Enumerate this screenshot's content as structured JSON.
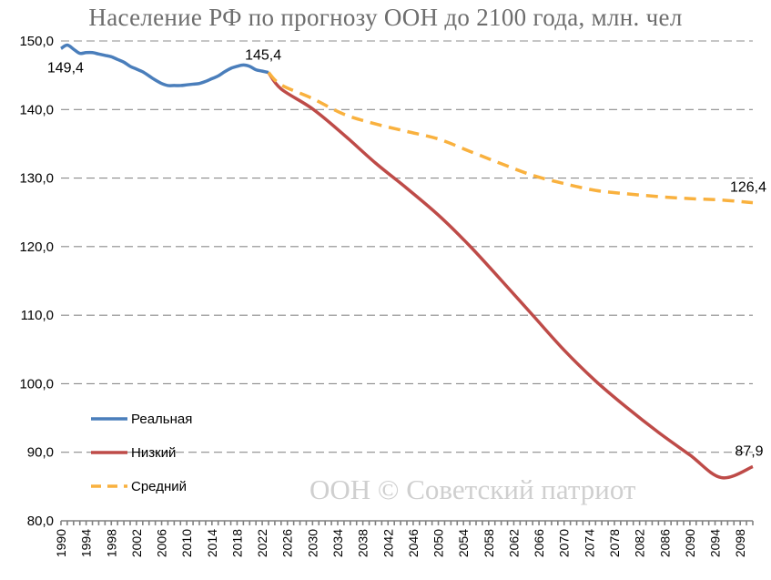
{
  "chart_data": {
    "type": "line",
    "title": "Население РФ по прогнозу ООН до 2100 года, млн. чел",
    "xlabel": "",
    "ylabel": "",
    "ylim": [
      80,
      150
    ],
    "xlim": [
      1990,
      2100
    ],
    "y_ticks": [
      "80,0",
      "90,0",
      "100,0",
      "110,0",
      "120,0",
      "130,0",
      "140,0",
      "150,0"
    ],
    "x_ticks": [
      "1990",
      "1994",
      "1998",
      "2002",
      "2006",
      "2010",
      "2014",
      "2018",
      "2022",
      "2026",
      "2030",
      "2034",
      "2038",
      "2042",
      "2046",
      "2050",
      "2054",
      "2058",
      "2062",
      "2066",
      "2070",
      "2074",
      "2078",
      "2082",
      "2086",
      "2090",
      "2094",
      "2098"
    ],
    "grid": true,
    "legend_position": "bottom-left",
    "series": [
      {
        "name": "Реальная",
        "color": "#4a7ebb",
        "style": "solid",
        "x": [
          1990,
          1991,
          1992,
          1993,
          1994,
          1995,
          1996,
          1997,
          1998,
          1999,
          2000,
          2001,
          2002,
          2003,
          2004,
          2005,
          2006,
          2007,
          2008,
          2009,
          2010,
          2011,
          2012,
          2013,
          2014,
          2015,
          2016,
          2017,
          2018,
          2019,
          2020,
          2021,
          2022,
          2023
        ],
        "y": [
          148.9,
          149.4,
          148.8,
          148.2,
          148.3,
          148.3,
          148.1,
          147.9,
          147.7,
          147.3,
          146.9,
          146.3,
          145.9,
          145.5,
          144.9,
          144.3,
          143.8,
          143.5,
          143.5,
          143.5,
          143.6,
          143.7,
          143.8,
          144.1,
          144.5,
          144.9,
          145.5,
          146.0,
          146.3,
          146.5,
          146.3,
          145.8,
          145.6,
          145.4
        ]
      },
      {
        "name": "Низкий",
        "color": "#be4b48",
        "style": "solid",
        "x": [
          2023,
          2025,
          2030,
          2035,
          2040,
          2045,
          2050,
          2055,
          2060,
          2065,
          2070,
          2075,
          2080,
          2085,
          2090,
          2095,
          2100
        ],
        "y": [
          145.4,
          143.0,
          140.1,
          136.3,
          132.2,
          128.5,
          124.6,
          120.1,
          115.1,
          110.0,
          104.9,
          100.4,
          96.5,
          92.9,
          89.6,
          86.3,
          87.9
        ]
      },
      {
        "name": "Средний",
        "color": "#f9b13e",
        "style": "dashed",
        "x": [
          2023,
          2025,
          2030,
          2035,
          2040,
          2045,
          2050,
          2055,
          2060,
          2065,
          2070,
          2075,
          2080,
          2085,
          2090,
          2095,
          2100
        ],
        "y": [
          145.4,
          143.6,
          141.6,
          139.3,
          137.9,
          136.8,
          135.7,
          133.9,
          132.1,
          130.4,
          129.2,
          128.2,
          127.7,
          127.3,
          127.0,
          126.8,
          126.4
        ]
      }
    ],
    "annotations": [
      "149,4",
      "145,4",
      "126,4",
      "87,9"
    ]
  },
  "watermark": "ООН © Советский патриот"
}
